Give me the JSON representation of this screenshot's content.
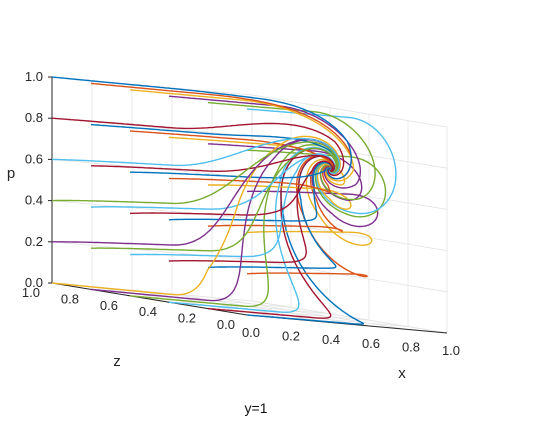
{
  "chart_data": {
    "type": "line",
    "subtype": "3d-phase-trajectories",
    "caption": "y=1",
    "axes": {
      "x": {
        "label": "x",
        "range": [
          0,
          1
        ],
        "ticks": [
          "0.0",
          "0.2",
          "0.4",
          "0.6",
          "0.8",
          "1.0"
        ]
      },
      "z": {
        "label": "z",
        "range": [
          0,
          1
        ],
        "ticks": [
          "0.0",
          "0.2",
          "0.4",
          "0.6",
          "0.8",
          "1.0"
        ]
      },
      "p": {
        "label": "p",
        "range": [
          0,
          1
        ],
        "ticks": [
          "0.0",
          "0.2",
          "0.4",
          "0.6",
          "0.8",
          "1.0"
        ]
      }
    },
    "grid": true,
    "box": "3d-back-panes",
    "view": "isometric-from-front-left",
    "series_colors": [
      "#0072BD",
      "#D95319",
      "#EDB120",
      "#7E2F8E",
      "#77AC30",
      "#4DBEEE",
      "#A2142F"
    ],
    "attractor": {
      "x": 0.75,
      "z": 0.6,
      "p": 0.7
    },
    "trajectory_starts_x": 0.0,
    "trajectory_starts_z": [
      0.0,
      0.2,
      0.4,
      0.6,
      0.8,
      1.0
    ],
    "trajectory_starts_p": [
      0.0,
      0.2,
      0.4,
      0.6,
      0.8,
      1.0
    ],
    "series": [
      {
        "start": [
          0,
          0.0,
          0.0
        ]
      },
      {
        "start": [
          0,
          0.0,
          0.2
        ]
      },
      {
        "start": [
          0,
          0.0,
          0.4
        ]
      },
      {
        "start": [
          0,
          0.0,
          0.6
        ]
      },
      {
        "start": [
          0,
          0.0,
          0.8
        ]
      },
      {
        "start": [
          0,
          0.0,
          1.0
        ]
      },
      {
        "start": [
          0,
          0.2,
          0.0
        ]
      },
      {
        "start": [
          0,
          0.2,
          0.2
        ]
      },
      {
        "start": [
          0,
          0.2,
          0.4
        ]
      },
      {
        "start": [
          0,
          0.2,
          0.6
        ]
      },
      {
        "start": [
          0,
          0.2,
          0.8
        ]
      },
      {
        "start": [
          0,
          0.2,
          1.0
        ]
      },
      {
        "start": [
          0,
          0.4,
          0.0
        ]
      },
      {
        "start": [
          0,
          0.4,
          0.2
        ]
      },
      {
        "start": [
          0,
          0.4,
          0.4
        ]
      },
      {
        "start": [
          0,
          0.4,
          0.6
        ]
      },
      {
        "start": [
          0,
          0.4,
          0.8
        ]
      },
      {
        "start": [
          0,
          0.4,
          1.0
        ]
      },
      {
        "start": [
          0,
          0.6,
          0.0
        ]
      },
      {
        "start": [
          0,
          0.6,
          0.2
        ]
      },
      {
        "start": [
          0,
          0.6,
          0.4
        ]
      },
      {
        "start": [
          0,
          0.6,
          0.6
        ]
      },
      {
        "start": [
          0,
          0.6,
          0.8
        ]
      },
      {
        "start": [
          0,
          0.6,
          1.0
        ]
      },
      {
        "start": [
          0,
          0.8,
          0.0
        ]
      },
      {
        "start": [
          0,
          0.8,
          0.2
        ]
      },
      {
        "start": [
          0,
          0.8,
          0.4
        ]
      },
      {
        "start": [
          0,
          0.8,
          0.6
        ]
      },
      {
        "start": [
          0,
          0.8,
          0.8
        ]
      },
      {
        "start": [
          0,
          0.8,
          1.0
        ]
      },
      {
        "start": [
          0,
          1.0,
          0.0
        ]
      },
      {
        "start": [
          0,
          1.0,
          0.2
        ]
      },
      {
        "start": [
          0,
          1.0,
          0.4
        ]
      },
      {
        "start": [
          0,
          1.0,
          0.6
        ]
      },
      {
        "start": [
          0,
          1.0,
          0.8
        ]
      },
      {
        "start": [
          0,
          1.0,
          1.0
        ]
      }
    ]
  }
}
